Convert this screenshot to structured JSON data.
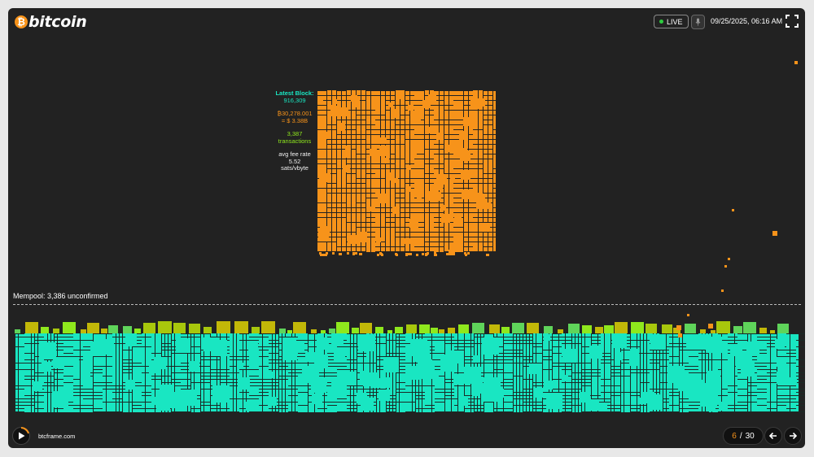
{
  "header": {
    "logo_symbol": "₿",
    "logo_text": "bitcoin",
    "live_label": "LIVE",
    "datetime": "09/25/2025, 06:16 AM",
    "icons": {
      "mic": "microphone-icon",
      "fullscreen": "fullscreen-icon"
    }
  },
  "latest_block": {
    "title": "Latest Block:",
    "height": "916,309",
    "reward_btc": "₿30,278.001",
    "reward_usd": "= $ 3.38B",
    "tx_count": "3,387",
    "tx_label": "transactions",
    "fee_label": "avg fee rate",
    "fee_value": "5.52",
    "fee_unit": "sats/vbyte"
  },
  "mempool": {
    "label": "Mempool: 3,386 unconfirmed"
  },
  "footer": {
    "site": "btcframe.com",
    "page_current": "6",
    "page_separator": "/",
    "page_total": "30",
    "icons": {
      "play": "play-icon",
      "prev": "arrow-left-icon",
      "next": "arrow-right-icon"
    }
  },
  "colors": {
    "background": "#222222",
    "block_orange": "#f7931a",
    "mempool_teal": "#19e6c2",
    "mempool_green": "#5fd45a",
    "mempool_yellow": "#c2b808",
    "live_dot": "#2ecc40"
  }
}
